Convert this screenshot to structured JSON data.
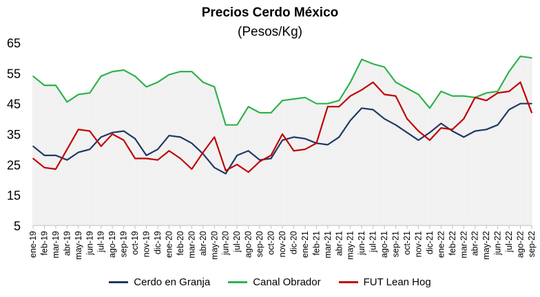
{
  "chart_data": {
    "type": "line",
    "title": "Precios Cerdo México",
    "subtitle": "(Pesos/Kg)",
    "xlabel": "",
    "ylabel": "",
    "ylim": [
      5,
      65
    ],
    "yticks": [
      "5",
      "15",
      "25",
      "35",
      "45",
      "55",
      "65"
    ],
    "grid": false,
    "legend_placement": "bottom",
    "categories": [
      "ene-19",
      "feb-19",
      "mar-19",
      "abr-19",
      "may-19",
      "jun-19",
      "jul-19",
      "ago-19",
      "sep-19",
      "oct-19",
      "nov-19",
      "dic-19",
      "ene-20",
      "feb-20",
      "mar-20",
      "abr-20",
      "may-20",
      "jun-20",
      "jul-20",
      "ago-20",
      "sep-20",
      "oct-20",
      "nov-20",
      "dic-20",
      "ene-21",
      "feb-21",
      "mar-21",
      "abr-21",
      "may-21",
      "jun-21",
      "jul-21",
      "ago-21",
      "sep-21",
      "oct-21",
      "nov-21",
      "dic-21",
      "ene-22",
      "feb-22",
      "mar-22",
      "abr-22",
      "may-22",
      "jun-22",
      "jul-22",
      "ago-22",
      "sep-22"
    ],
    "series": [
      {
        "name": "Cerdo en Granja",
        "color": "#1f3864",
        "values": [
          31,
          28,
          28,
          26.5,
          29,
          30,
          34,
          35.5,
          36,
          33.5,
          28,
          30,
          34.5,
          34,
          32,
          28.5,
          24,
          22,
          28,
          29.5,
          26.5,
          27,
          33,
          34,
          33.5,
          32,
          31.5,
          34,
          39.5,
          43.5,
          43,
          40,
          38,
          35.5,
          33,
          35.5,
          38.5,
          36,
          34,
          36,
          36.5,
          38,
          43,
          45,
          45
        ]
      },
      {
        "name": "Canal Obrador",
        "color": "#2db34a",
        "values": [
          54,
          51,
          51,
          45.5,
          48,
          48.5,
          54,
          55.5,
          56,
          54,
          50.5,
          52,
          54.5,
          55.5,
          55.5,
          52,
          50.5,
          38,
          38,
          44,
          42,
          42,
          46,
          46.5,
          47,
          45,
          45,
          46,
          52,
          59.5,
          58,
          57,
          52,
          50,
          48,
          43.5,
          49,
          47.5,
          47.5,
          47,
          48.5,
          49,
          55.5,
          60.5,
          60
        ]
      },
      {
        "name": "FUT Lean Hog",
        "color": "#c00000",
        "values": [
          27,
          24,
          23.5,
          30,
          36.5,
          36,
          31,
          35,
          33,
          27,
          27,
          26.5,
          29.5,
          27,
          23.5,
          29,
          34,
          23,
          25,
          22.5,
          26,
          28,
          35,
          29.5,
          30,
          32,
          44,
          44,
          47.5,
          49.5,
          52,
          48,
          47.5,
          40,
          36,
          33,
          37,
          36.5,
          40,
          47,
          46,
          48.5,
          49,
          52,
          42
        ]
      }
    ]
  }
}
